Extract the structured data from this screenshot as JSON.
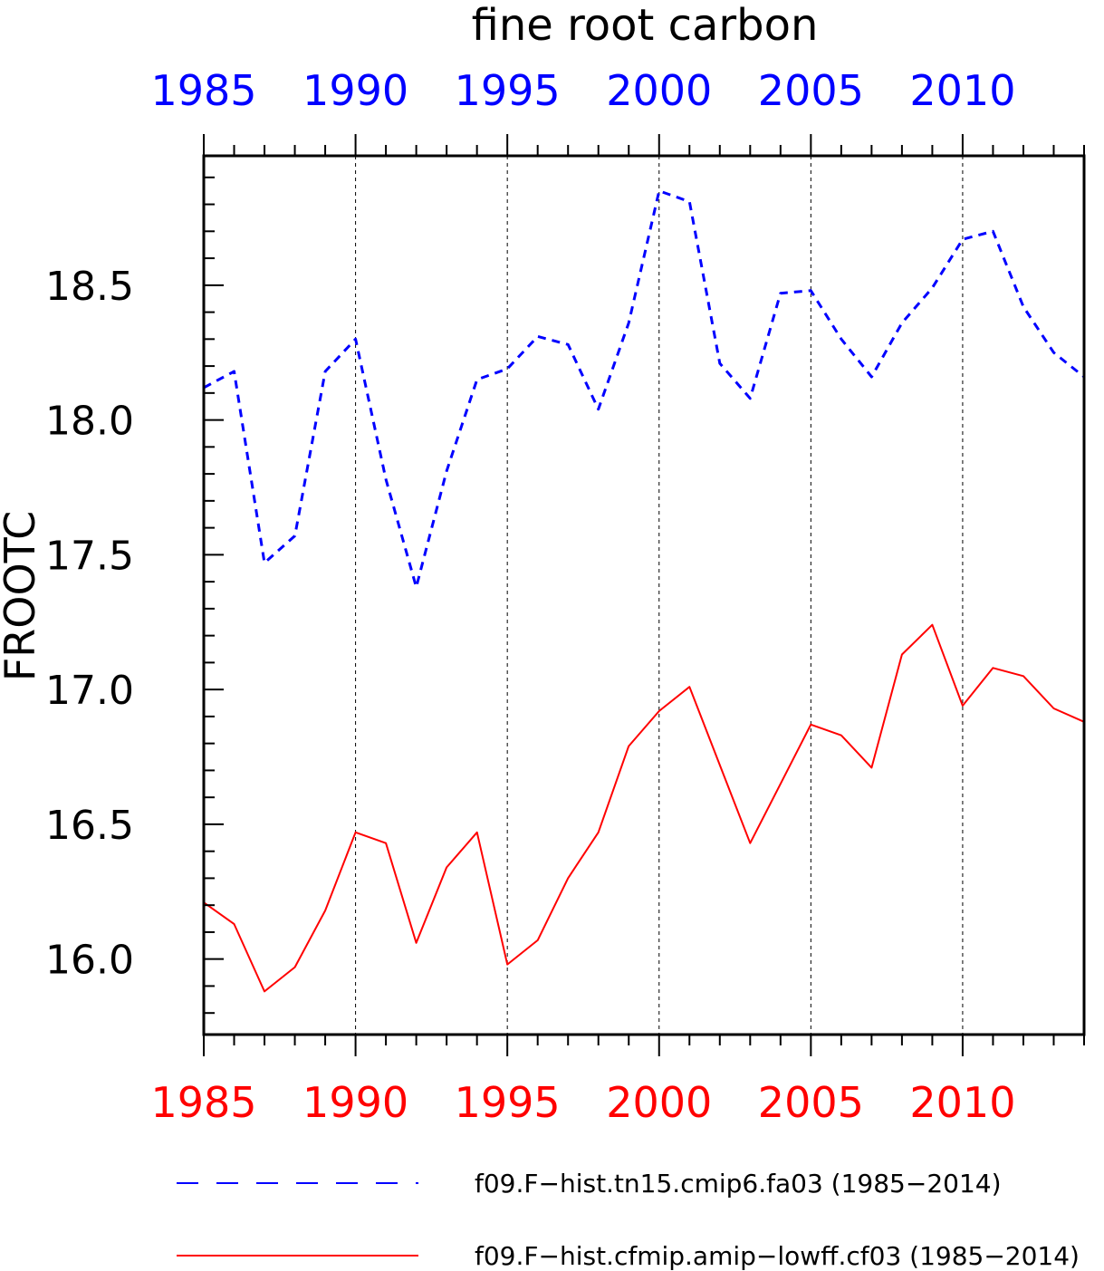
{
  "chart_data": {
    "type": "line",
    "title": "fine root carbon",
    "ylabel": "FROOTC",
    "xlabel": "",
    "xlim": [
      1985,
      2014
    ],
    "ylim": [
      15.72,
      18.98
    ],
    "x_ticks": [
      1985,
      1990,
      1995,
      2000,
      2005,
      2010
    ],
    "x_tick_labels": [
      "1985",
      "1990",
      "1995",
      "2000",
      "2005",
      "2010"
    ],
    "y_ticks": [
      16.0,
      16.5,
      17.0,
      17.5,
      18.0,
      18.5
    ],
    "y_tick_labels": [
      "16.0",
      "16.5",
      "17.0",
      "17.5",
      "18.0",
      "18.5"
    ],
    "vertical_grid": true,
    "top_axis_color": "#0000ff",
    "bottom_axis_color": "#ff0000",
    "legend_position": "bottom",
    "x": [
      1985,
      1986,
      1987,
      1988,
      1989,
      1990,
      1991,
      1992,
      1993,
      1994,
      1995,
      1996,
      1997,
      1998,
      1999,
      2000,
      2001,
      2002,
      2003,
      2004,
      2005,
      2006,
      2007,
      2008,
      2009,
      2010,
      2011,
      2012,
      2013,
      2014
    ],
    "series": [
      {
        "name": "f09.F−hist.tn15.cmip6.fa03 (1985−2014)",
        "color": "#0000ff",
        "style": "dashed",
        "values": [
          18.12,
          18.18,
          17.47,
          17.57,
          18.18,
          18.3,
          17.78,
          17.38,
          17.81,
          18.15,
          18.19,
          18.31,
          18.28,
          18.04,
          18.36,
          18.85,
          18.81,
          18.21,
          18.08,
          18.47,
          18.48,
          18.3,
          18.16,
          18.36,
          18.49,
          18.67,
          18.7,
          18.42,
          18.25,
          18.16
        ]
      },
      {
        "name": "f09.F−hist.cfmip.amip−lowff.cf03 (1985−2014)",
        "color": "#ff0000",
        "style": "solid",
        "values": [
          16.21,
          16.13,
          15.88,
          15.97,
          16.18,
          16.47,
          16.43,
          16.06,
          16.34,
          16.47,
          15.98,
          16.07,
          16.3,
          16.47,
          16.79,
          16.92,
          17.01,
          16.72,
          16.43,
          16.65,
          16.87,
          16.83,
          16.71,
          17.13,
          17.24,
          16.94,
          17.08,
          17.05,
          16.93,
          16.88
        ]
      }
    ]
  }
}
